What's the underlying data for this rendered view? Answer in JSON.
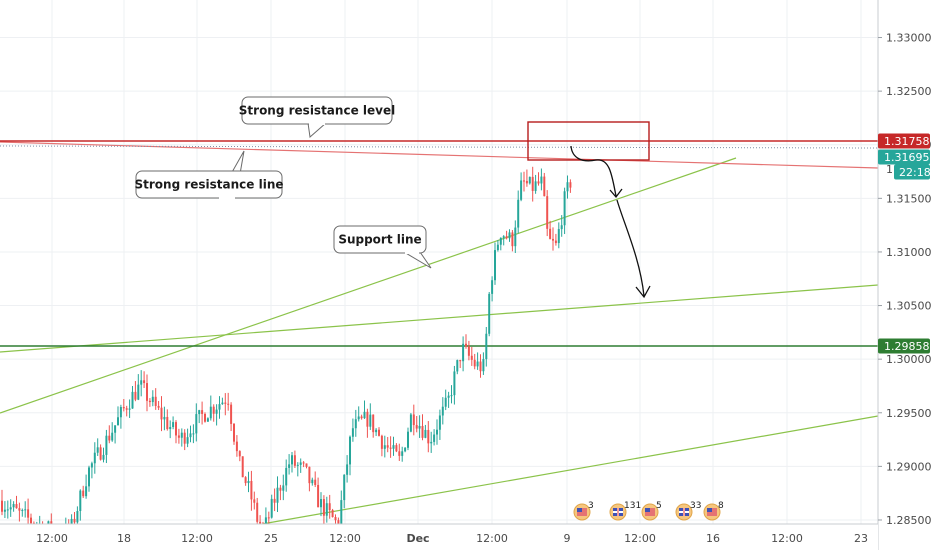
{
  "chart_data": {
    "type": "candlestick",
    "price_axis": {
      "ticks": [
        "1.33000",
        "1.32500",
        "1.32000",
        "1.31500",
        "1.31000",
        "1.30500",
        "1.30000",
        "1.29500",
        "1.29000",
        "1.28500"
      ],
      "tick_values": [
        1.33,
        1.325,
        1.32,
        1.315,
        1.31,
        1.305,
        1.3,
        1.295,
        1.29,
        1.285
      ],
      "range": [
        1.2822,
        1.3335
      ]
    },
    "time_axis": {
      "labels": [
        "12:00",
        "18",
        "12:00",
        "25",
        "12:00",
        "Dec",
        "12:00",
        "9",
        "12:00",
        "16",
        "12:00",
        "23"
      ]
    },
    "price_tags": [
      {
        "label": "1.31758",
        "value": 1.31758,
        "color": "#c62828"
      },
      {
        "label": "1.31695",
        "value": 1.31695,
        "color": "#26a69a"
      },
      {
        "label": "22:18",
        "value": 1.3159,
        "color": "#26a69a"
      },
      {
        "label": "1.29858",
        "value": 1.29858,
        "color": "#2e7d32"
      }
    ],
    "partial_tick_label": "1",
    "horizontal_levels": [
      {
        "value": 1.31758,
        "color": "#c62828"
      },
      {
        "value": 1.29858,
        "color": "#2e7d32"
      }
    ],
    "annotations": [
      {
        "text": "Strong resistance level"
      },
      {
        "text": "Strong resistance line"
      },
      {
        "text": "Support line"
      }
    ],
    "candle_color_up": "#26a69a",
    "candle_color_down": "#ef5350",
    "trendline_resistance_color": "#e57373",
    "trendline_support_color": "#8bc34a",
    "events": [
      {
        "flag": "us",
        "count": "3"
      },
      {
        "flag": "uk",
        "count": "131"
      },
      {
        "flag": "us",
        "count": "5"
      },
      {
        "flag": "uk",
        "count": "33"
      },
      {
        "flag": "us",
        "count": "8"
      }
    ]
  }
}
